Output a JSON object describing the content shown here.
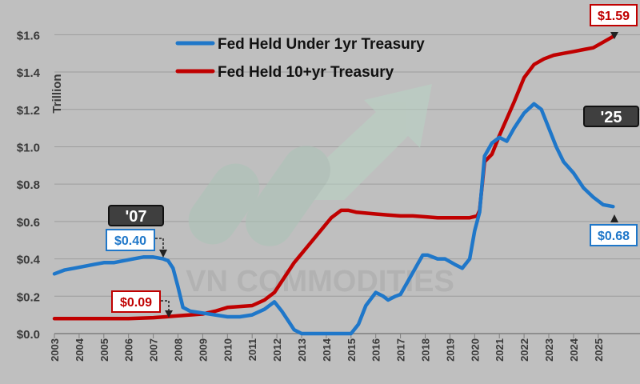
{
  "chart_data": {
    "type": "line",
    "ylabel": "Trillion",
    "ylim": [
      0,
      1.7
    ],
    "xlim": [
      2003,
      2025.8
    ],
    "yticks": [
      "$0.0",
      "$0.2",
      "$0.4",
      "$0.6",
      "$0.8",
      "$1.0",
      "$1.2",
      "$1.4",
      "$1.6"
    ],
    "yvalues": [
      0,
      0.2,
      0.4,
      0.6,
      0.8,
      1.0,
      1.2,
      1.4,
      1.6
    ],
    "xticks": [
      "2003",
      "2004",
      "2005",
      "2006",
      "2007",
      "2008",
      "2009",
      "2010",
      "2011",
      "2012",
      "2013",
      "2014",
      "2015",
      "2016",
      "2017",
      "2018",
      "2019",
      "2020",
      "2021",
      "2022",
      "2023",
      "2024",
      "2025"
    ],
    "grid": true,
    "legend_position": "top",
    "watermark": "VN COMMODITIES",
    "colors": {
      "short": "#1f77c9",
      "long": "#c00000",
      "background": "#bfbfbf"
    },
    "series": [
      {
        "name": "Fed Held Under 1yr Treasury",
        "x": [
          2003,
          2003.4,
          2003.8,
          2004.2,
          2004.6,
          2005,
          2005.4,
          2005.8,
          2006.2,
          2006.6,
          2007,
          2007.4,
          2007.6,
          2007.8,
          2008.0,
          2008.2,
          2008.5,
          2009,
          2009.5,
          2010,
          2010.5,
          2011,
          2011.5,
          2011.9,
          2012.2,
          2012.5,
          2012.7,
          2013,
          2013.5,
          2014,
          2014.5,
          2015,
          2015.3,
          2015.6,
          2016,
          2016.3,
          2016.5,
          2016.8,
          2017,
          2017.3,
          2017.6,
          2017.9,
          2018.1,
          2018.5,
          2018.8,
          2019.2,
          2019.5,
          2019.8,
          2020,
          2020.2,
          2020.4,
          2020.7,
          2021,
          2021.3,
          2021.6,
          2022,
          2022.4,
          2022.7,
          2023,
          2023.3,
          2023.6,
          2024,
          2024.4,
          2024.8,
          2025.2,
          2025.6
        ],
        "values": [
          0.32,
          0.34,
          0.35,
          0.36,
          0.37,
          0.38,
          0.38,
          0.39,
          0.4,
          0.41,
          0.41,
          0.4,
          0.39,
          0.35,
          0.25,
          0.14,
          0.12,
          0.11,
          0.1,
          0.09,
          0.09,
          0.1,
          0.13,
          0.17,
          0.12,
          0.06,
          0.02,
          0.0,
          0.0,
          0.0,
          0.0,
          0.0,
          0.05,
          0.15,
          0.22,
          0.2,
          0.18,
          0.2,
          0.21,
          0.28,
          0.35,
          0.42,
          0.42,
          0.4,
          0.4,
          0.37,
          0.35,
          0.4,
          0.55,
          0.65,
          0.95,
          1.02,
          1.05,
          1.03,
          1.1,
          1.18,
          1.23,
          1.2,
          1.1,
          1.0,
          0.92,
          0.86,
          0.78,
          0.73,
          0.69,
          0.68
        ]
      },
      {
        "name": "Fed Held 10+yr Treasury",
        "x": [
          2003,
          2004,
          2005,
          2006,
          2007,
          2007.5,
          2008,
          2008.5,
          2009,
          2009.5,
          2010,
          2010.5,
          2011,
          2011.5,
          2011.9,
          2012.3,
          2012.7,
          2013.2,
          2013.7,
          2014.2,
          2014.6,
          2014.9,
          2015.2,
          2015.6,
          2016,
          2016.5,
          2017,
          2017.5,
          2018,
          2018.5,
          2019,
          2019.5,
          2019.8,
          2020.1,
          2020.2,
          2020.4,
          2020.7,
          2021,
          2021.3,
          2021.6,
          2022,
          2022.4,
          2022.8,
          2023.2,
          2023.6,
          2024,
          2024.4,
          2024.8,
          2025.2,
          2025.6
        ],
        "values": [
          0.08,
          0.08,
          0.08,
          0.08,
          0.085,
          0.09,
          0.095,
          0.1,
          0.105,
          0.12,
          0.14,
          0.145,
          0.15,
          0.18,
          0.22,
          0.3,
          0.38,
          0.46,
          0.54,
          0.62,
          0.66,
          0.66,
          0.65,
          0.645,
          0.64,
          0.635,
          0.63,
          0.63,
          0.625,
          0.62,
          0.62,
          0.62,
          0.62,
          0.63,
          0.66,
          0.92,
          0.96,
          1.06,
          1.15,
          1.24,
          1.37,
          1.44,
          1.47,
          1.49,
          1.5,
          1.51,
          1.52,
          1.53,
          1.56,
          1.59
        ]
      }
    ],
    "annotations": {
      "year_2007": "'07",
      "year_2025": "'25",
      "short_2007": "$0.40",
      "long_2007": "$0.09",
      "short_2025": "$0.68",
      "long_2025": "$1.59"
    }
  }
}
